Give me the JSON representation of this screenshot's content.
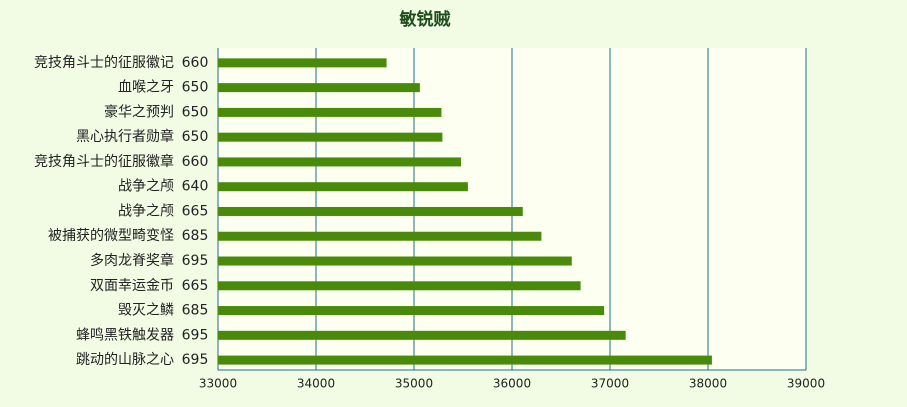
{
  "chart_data": {
    "type": "bar",
    "orientation": "horizontal",
    "title": "敏锐贼",
    "categories": [
      "竞技角斗士的征服徽记",
      "血喉之牙",
      "豪华之预判",
      "黑心执行者勋章",
      "竞技角斗士的征服徽章",
      "战争之颅",
      "战争之颅",
      "被捕获的微型畸变怪",
      "多肉龙脊奖章",
      "双面幸运金币",
      "毁灭之鳞",
      "蜂鸣黑铁触发器",
      "跳动的山脉之心"
    ],
    "item_levels": [
      660,
      650,
      650,
      650,
      660,
      640,
      665,
      685,
      695,
      665,
      685,
      695,
      695
    ],
    "values": [
      34720,
      35060,
      35280,
      35290,
      35480,
      35550,
      36110,
      36300,
      36610,
      36700,
      36940,
      37160,
      38040
    ],
    "color": "#4a8a0a",
    "xlim": [
      33000,
      39000
    ],
    "xticks": [
      33000,
      34000,
      35000,
      36000,
      37000,
      38000,
      39000
    ],
    "grid": true
  }
}
